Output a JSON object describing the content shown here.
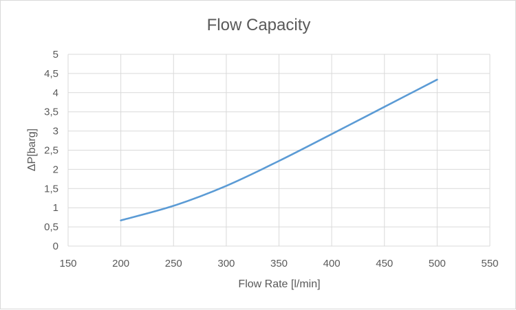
{
  "chart_data": {
    "type": "line",
    "title": "Flow Capacity",
    "xlabel": "Flow Rate [l/min]",
    "ylabel": "ΔP[barg]",
    "xlim": [
      150,
      550
    ],
    "ylim": [
      0,
      5
    ],
    "x_ticks": [
      "150",
      "200",
      "250",
      "300",
      "350",
      "400",
      "450",
      "500",
      "550"
    ],
    "y_ticks": [
      "0",
      "0,5",
      "1",
      "1,5",
      "2",
      "2,5",
      "3",
      "3,5",
      "4",
      "4,5",
      "5"
    ],
    "grid": true,
    "legend": "none",
    "series": [
      {
        "color": "#5b9bd5",
        "x": [
          200,
          250,
          300,
          350,
          400,
          450,
          500
        ],
        "y": [
          0.67,
          1.05,
          1.57,
          2.22,
          2.92,
          3.63,
          4.34
        ]
      }
    ]
  }
}
